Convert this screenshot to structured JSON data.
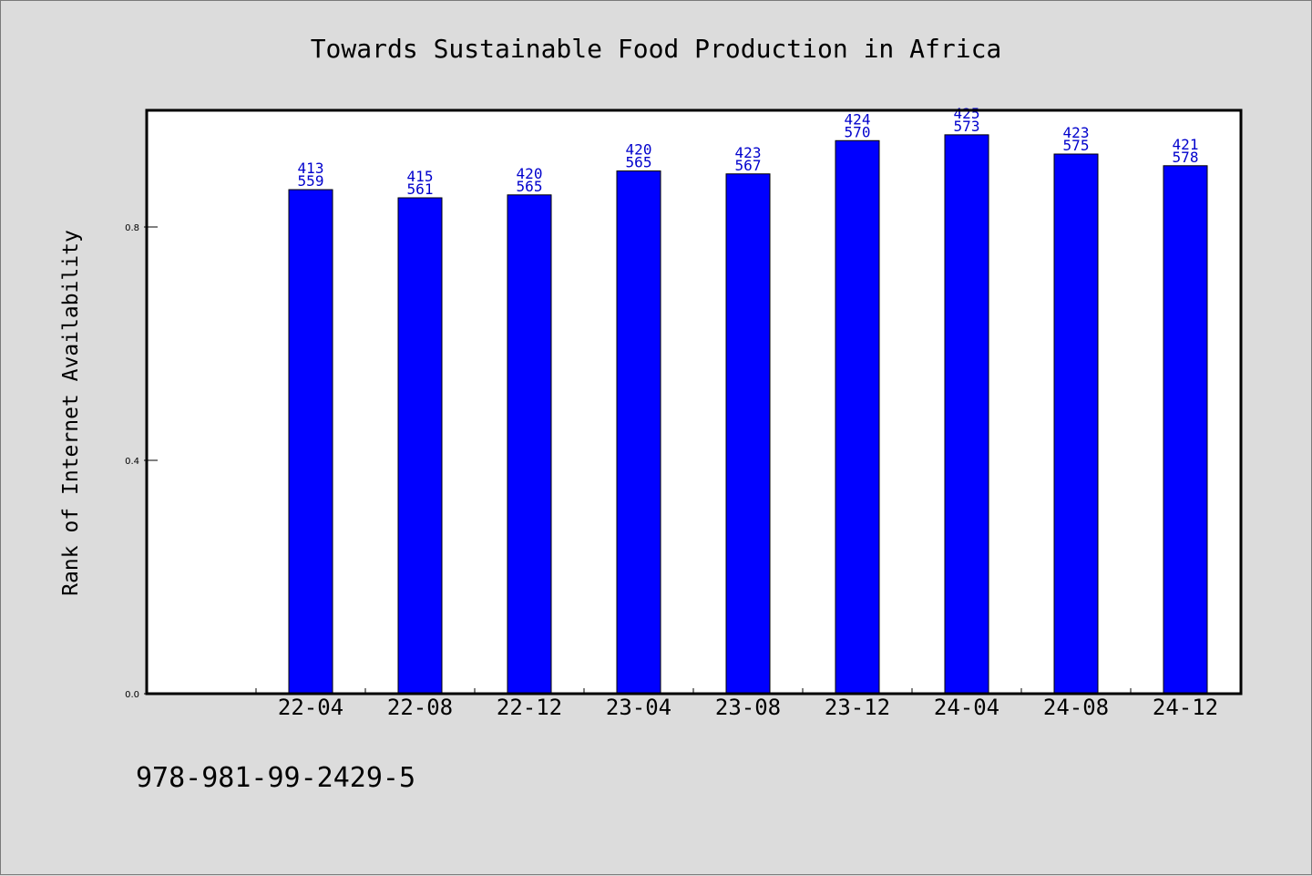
{
  "footer_text": "978-981-99-2429-5",
  "chart_data": {
    "type": "bar",
    "title": "Towards Sustainable Food Production in Africa",
    "xlabel": "",
    "ylabel": "Rank of Internet Availability",
    "categories": [
      "22-04",
      "22-08",
      "22-12",
      "23-04",
      "23-08",
      "23-12",
      "24-04",
      "24-08",
      "24-12"
    ],
    "values": [
      0.864,
      0.85,
      0.855,
      0.896,
      0.891,
      0.948,
      0.958,
      0.925,
      0.905
    ],
    "data_labels": [
      [
        "413",
        "559"
      ],
      [
        "415",
        "561"
      ],
      [
        "420",
        "565"
      ],
      [
        "420",
        "565"
      ],
      [
        "423",
        "567"
      ],
      [
        "424",
        "570"
      ],
      [
        "425",
        "573"
      ],
      [
        "423",
        "575"
      ],
      [
        "421",
        "578"
      ]
    ],
    "yticks": [
      0.0,
      0.4,
      0.8
    ],
    "ytick_labels": [
      "0.0",
      "0.4",
      "0.8"
    ],
    "ylim": [
      0,
      1.0
    ],
    "grid": false,
    "colors": {
      "bar": "#0000ff",
      "data_label": "#0000cc",
      "background": "#dcdcdc",
      "plot_area": "#ffffff"
    }
  }
}
